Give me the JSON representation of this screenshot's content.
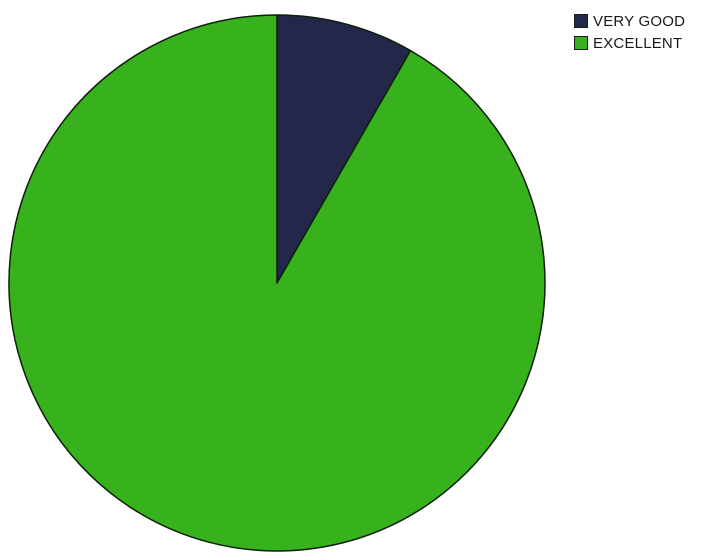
{
  "chart_data": {
    "type": "pie",
    "title": "",
    "start_angle_deg": 0,
    "direction": "clockwise",
    "slices": [
      {
        "label": "VERY GOOD",
        "value": 8.3,
        "color": "#23284a"
      },
      {
        "label": "EXCELLENT",
        "value": 91.7,
        "color": "#37b11c"
      }
    ],
    "legend": {
      "position": "top-right",
      "items": [
        {
          "label": "VERY GOOD",
          "color": "#23284a"
        },
        {
          "label": "EXCELLENT",
          "color": "#37b11c"
        }
      ]
    },
    "border_color": "#0d1f0a"
  }
}
